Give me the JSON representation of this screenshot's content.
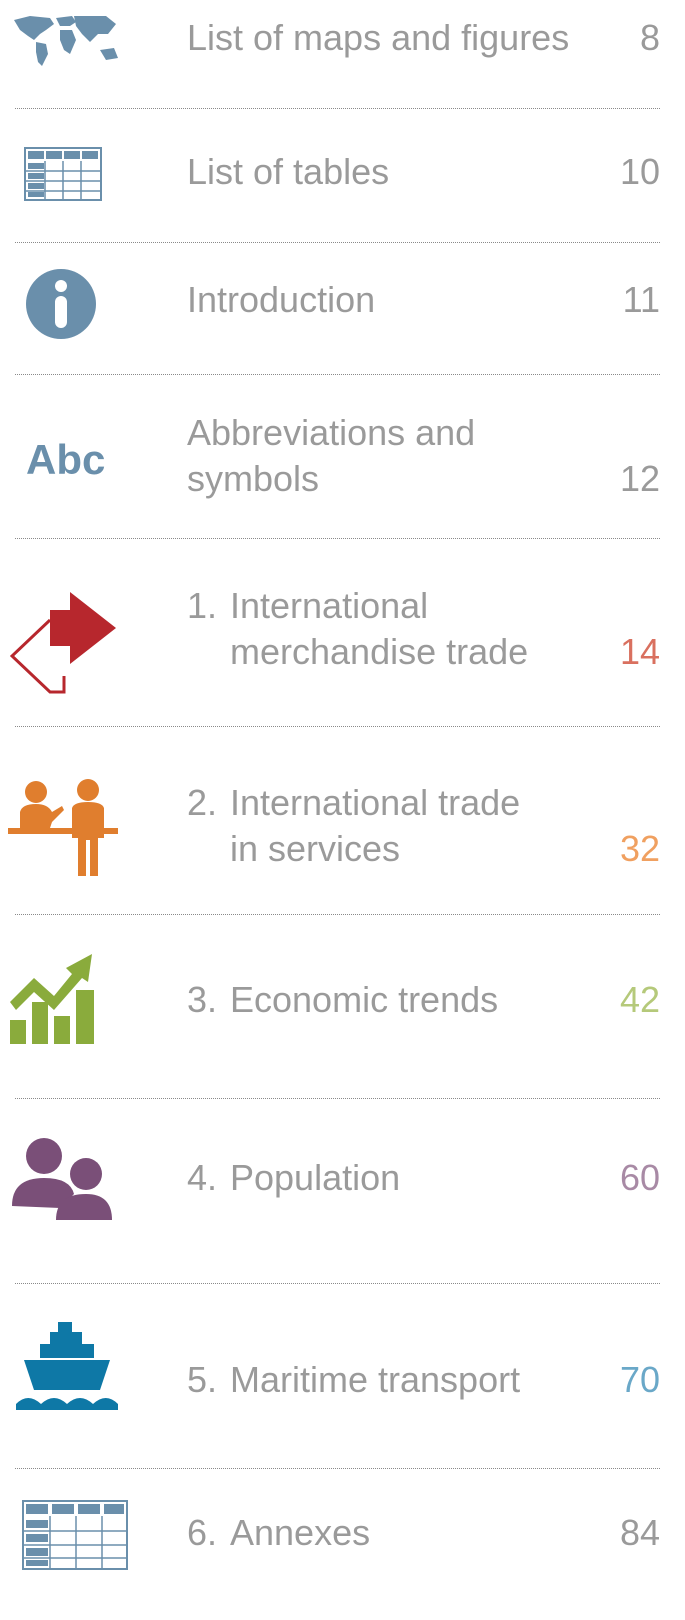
{
  "icon_label": "Abc",
  "entries": [
    {
      "title_lines": [
        "List of maps and figures"
      ],
      "page": "8"
    },
    {
      "title_lines": [
        "List of tables"
      ],
      "page": "10"
    },
    {
      "title_lines": [
        "Introduction"
      ],
      "page": "11"
    },
    {
      "title_lines": [
        "Abbreviations and",
        "symbols"
      ],
      "page": "12"
    },
    {
      "number": "1.",
      "title_lines": [
        "International",
        "merchandise trade"
      ],
      "page": "14",
      "color": "#d9705f"
    },
    {
      "number": "2.",
      "title_lines": [
        "International trade",
        "in services"
      ],
      "page": "32",
      "color": "#f0a060"
    },
    {
      "number": "3.",
      "title_lines": [
        "Economic trends"
      ],
      "page": "42",
      "color": "#b5c97a"
    },
    {
      "number": "4.",
      "title_lines": [
        "Population"
      ],
      "page": "60",
      "color": "#a88aa5"
    },
    {
      "number": "5.",
      "title_lines": [
        "Maritime transport"
      ],
      "page": "70",
      "color": "#6aa8c8"
    },
    {
      "number": "6.",
      "title_lines": [
        "Annexes"
      ],
      "page": "84"
    }
  ]
}
